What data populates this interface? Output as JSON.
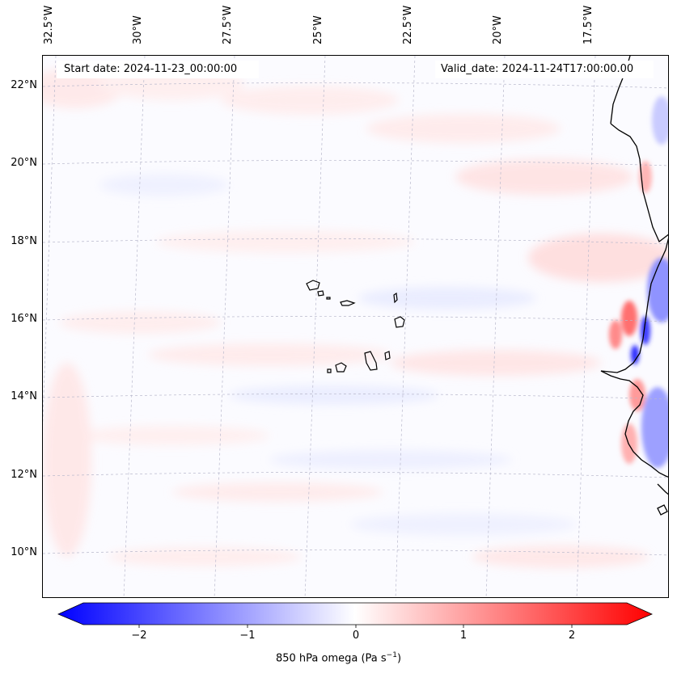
{
  "map": {
    "start_date": "Start date: 2024-11-23_00:00:00",
    "valid_date": "Valid_date: 2024-11-24T17:00:00.00",
    "longitude_labels": [
      "32.5°W",
      "30°W",
      "27.5°W",
      "25°W",
      "22.5°W",
      "20°W",
      "17.5°W"
    ],
    "latitude_labels": [
      "22°N",
      "20°N",
      "18°N",
      "16°N",
      "14°N",
      "12°N",
      "10°N"
    ],
    "field": "850 hPa omega"
  },
  "colorbar": {
    "label_text": "850 hPa omega (Pa s",
    "label_exp": "−1",
    "label_close": ")",
    "ticks": [
      "−2",
      "−1",
      "0",
      "1",
      "2"
    ],
    "range": [
      -2.6,
      2.6
    ],
    "colors": {
      "negative": "#0000ff",
      "zero": "#ffffff",
      "positive": "#ff0000"
    }
  }
}
